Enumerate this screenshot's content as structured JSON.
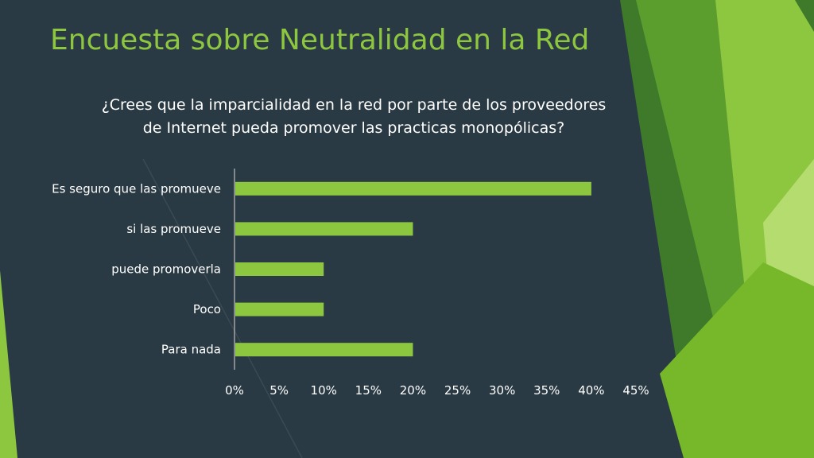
{
  "slide": {
    "title": "Encuesta sobre Neutralidad en la Red",
    "question": "¿Crees que la imparcialidad en la red por parte de los proveedores de Internet pueda promover las practicas monopólicas?"
  },
  "colors": {
    "background": "#2a3a44",
    "accent": "#8dc63f",
    "bar": "#8dc63f",
    "text": "#ffffff"
  },
  "chart_data": {
    "type": "bar",
    "orientation": "horizontal",
    "categories": [
      "Es seguro que las promueve",
      "si las promueve",
      "puede promoverla",
      "Poco",
      "Para nada"
    ],
    "values": [
      40,
      20,
      10,
      10,
      20
    ],
    "xlim": [
      0,
      45
    ],
    "ticks": [
      0,
      5,
      10,
      15,
      20,
      25,
      30,
      35,
      40,
      45
    ],
    "tick_labels": [
      "0%",
      "5%",
      "10%",
      "15%",
      "20%",
      "25%",
      "30%",
      "35%",
      "40%",
      "45%"
    ],
    "title": "",
    "xlabel": "",
    "ylabel": "",
    "grid": false,
    "legend": "none"
  }
}
